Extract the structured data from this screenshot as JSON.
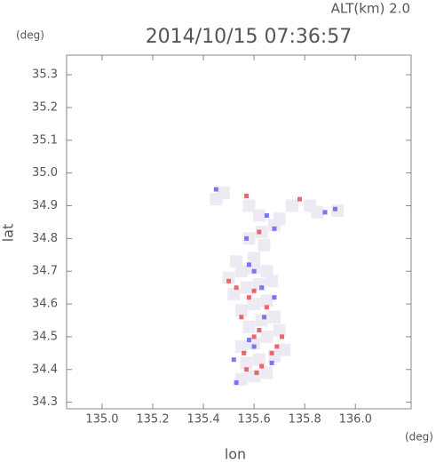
{
  "chart_data": {
    "type": "scatter",
    "title": "2014/10/15 07:36:57",
    "subtitle": "ALT(km) 2.0",
    "y_unit": "(deg)",
    "x_unit": "(deg)",
    "x_label": "lon",
    "y_label": "lat",
    "xlim": [
      134.86,
      136.22
    ],
    "ylim": [
      34.28,
      35.36
    ],
    "xticks": [
      {
        "value": 135,
        "label": "135.0"
      },
      135.2,
      135.4,
      135.6,
      135.8,
      {
        "value": 136,
        "label": "136.0"
      }
    ],
    "yticks": [
      34.3,
      34.4,
      34.5,
      34.6,
      34.7,
      34.8,
      34.9,
      {
        "value": 35,
        "label": "35.0"
      },
      35.1,
      35.2,
      35.3
    ],
    "series": [
      {
        "color": "#eeeaf4",
        "x": [
          135.55,
          135.6,
          135.65,
          135.57,
          135.62,
          135.68,
          135.72,
          135.55,
          135.6,
          135.65,
          135.7,
          135.58,
          135.63,
          135.68,
          135.55,
          135.6,
          135.65,
          135.52,
          135.57,
          135.62,
          135.67,
          135.5,
          135.55,
          135.6,
          135.65,
          135.53,
          135.6,
          135.58,
          135.63,
          135.68,
          135.62,
          135.7,
          135.45,
          135.48,
          135.82,
          135.85,
          135.93,
          135.75,
          135.58,
          135.64
        ],
        "y": [
          34.37,
          34.38,
          34.39,
          34.42,
          34.43,
          34.44,
          34.46,
          34.47,
          34.48,
          34.5,
          34.52,
          34.53,
          34.55,
          34.56,
          34.58,
          34.6,
          34.61,
          34.63,
          34.65,
          34.66,
          34.67,
          34.68,
          34.7,
          34.71,
          34.7,
          34.73,
          34.74,
          34.8,
          34.82,
          34.84,
          34.87,
          34.86,
          34.92,
          34.94,
          34.9,
          34.88,
          34.885,
          34.9,
          34.9,
          34.78
        ]
      },
      {
        "color": "#ee6666",
        "x": [
          135.57,
          135.63,
          135.69,
          135.71,
          135.6,
          135.58,
          135.6,
          135.53,
          135.5,
          135.65,
          135.62,
          135.56,
          135.78,
          135.57,
          135.62,
          135.67,
          135.55,
          135.61
        ],
        "y": [
          34.4,
          34.41,
          34.47,
          34.5,
          34.5,
          34.62,
          34.64,
          34.65,
          34.67,
          34.59,
          34.52,
          34.45,
          34.92,
          34.93,
          34.82,
          34.45,
          34.56,
          34.39
        ]
      },
      {
        "color": "#7777ee",
        "x": [
          135.53,
          135.6,
          135.58,
          135.67,
          135.64,
          135.58,
          135.6,
          135.63,
          135.68,
          135.65,
          135.88,
          135.92,
          135.45,
          135.57,
          135.68,
          135.52
        ],
        "y": [
          34.36,
          34.47,
          34.49,
          34.42,
          34.56,
          34.72,
          34.7,
          34.65,
          34.83,
          34.87,
          34.88,
          34.89,
          34.95,
          34.8,
          34.62,
          34.43
        ]
      }
    ]
  }
}
